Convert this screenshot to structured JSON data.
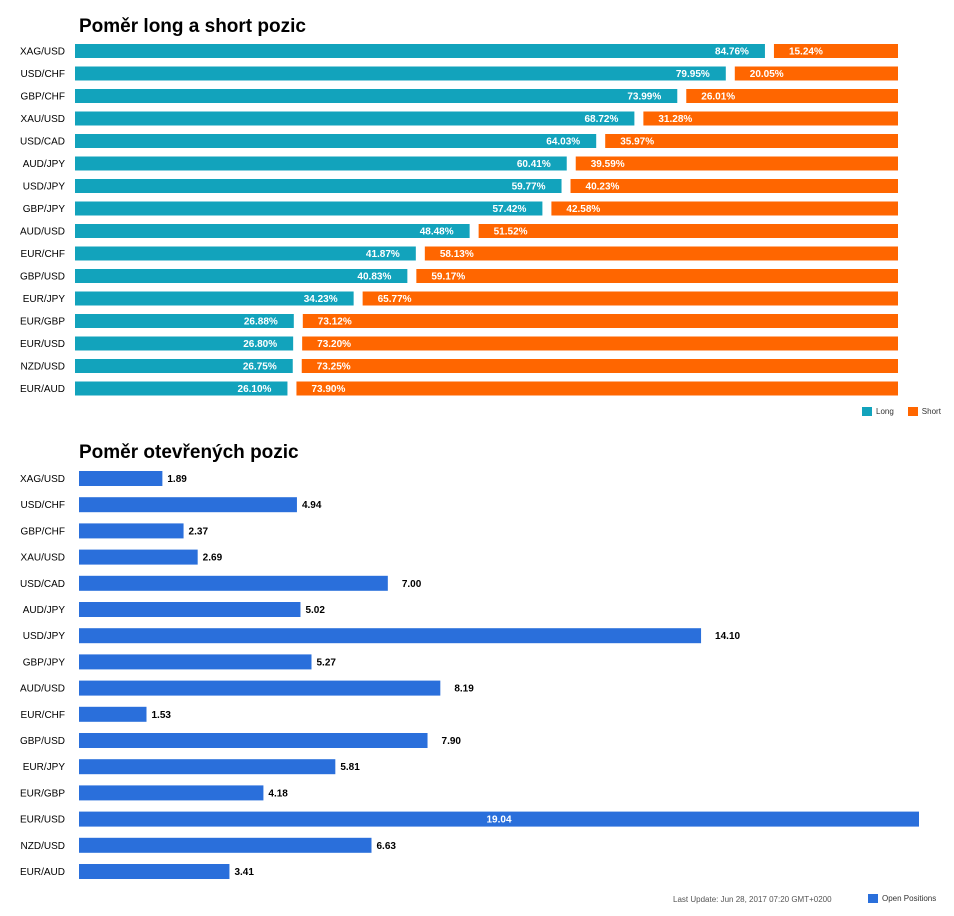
{
  "chart_data": [
    {
      "type": "bar",
      "orientation": "horizontal",
      "stacked": true,
      "title": "Poměr long a short pozic",
      "categories": [
        "XAG/USD",
        "USD/CHF",
        "GBP/CHF",
        "XAU/USD",
        "USD/CAD",
        "AUD/JPY",
        "USD/JPY",
        "GBP/JPY",
        "AUD/USD",
        "EUR/CHF",
        "GBP/USD",
        "EUR/JPY",
        "EUR/GBP",
        "EUR/USD",
        "NZD/USD",
        "EUR/AUD"
      ],
      "series": [
        {
          "name": "Long",
          "color": "#12a3bc",
          "values": [
            84.76,
            79.95,
            73.99,
            68.72,
            64.03,
            60.41,
            59.77,
            57.42,
            48.48,
            41.87,
            40.83,
            34.23,
            26.88,
            26.8,
            26.75,
            26.1
          ],
          "labels": [
            "84.76%",
            "79.95%",
            "73.99%",
            "68.72%",
            "64.03%",
            "60.41%",
            "59.77%",
            "57.42%",
            "48.48%",
            "41.87%",
            "40.83%",
            "34.23%",
            "26.88%",
            "26.80%",
            "26.75%",
            "26.10%"
          ]
        },
        {
          "name": "Short",
          "color": "#ff6600",
          "values": [
            15.24,
            20.05,
            26.01,
            31.28,
            35.97,
            39.59,
            40.23,
            42.58,
            51.52,
            58.13,
            59.17,
            65.77,
            73.12,
            73.2,
            73.25,
            73.9
          ],
          "labels": [
            "15.24%",
            "20.05%",
            "26.01%",
            "31.28%",
            "35.97%",
            "39.59%",
            "40.23%",
            "42.58%",
            "51.52%",
            "58.13%",
            "59.17%",
            "65.77%",
            "73.12%",
            "73.20%",
            "73.25%",
            "73.90%"
          ]
        }
      ],
      "xlim": [
        0,
        100
      ],
      "legend": "bottom-right"
    },
    {
      "type": "bar",
      "orientation": "horizontal",
      "title": "Poměr otevřených pozic",
      "categories": [
        "XAG/USD",
        "USD/CHF",
        "GBP/CHF",
        "XAU/USD",
        "USD/CAD",
        "AUD/JPY",
        "USD/JPY",
        "GBP/JPY",
        "AUD/USD",
        "EUR/CHF",
        "GBP/USD",
        "EUR/JPY",
        "EUR/GBP",
        "EUR/USD",
        "NZD/USD",
        "EUR/AUD"
      ],
      "series": [
        {
          "name": "Open Positions",
          "color": "#2a6fdb",
          "values": [
            1.89,
            4.94,
            2.37,
            2.69,
            7.0,
            5.02,
            14.1,
            5.27,
            8.19,
            1.53,
            7.9,
            5.81,
            4.18,
            19.04,
            6.63,
            3.41
          ],
          "labels": [
            "1.89",
            "4.94",
            "2.37",
            "2.69",
            "7.00",
            "5.02",
            "14.10",
            "5.27",
            "8.19",
            "1.53",
            "7.90",
            "5.81",
            "4.18",
            "19.04",
            "6.63",
            "3.41"
          ]
        }
      ],
      "xlim": [
        0,
        19.04
      ],
      "legend": "bottom-right"
    }
  ],
  "footer": {
    "last_update": "Last Update: Jun 28, 2017 07:20 GMT+0200"
  }
}
